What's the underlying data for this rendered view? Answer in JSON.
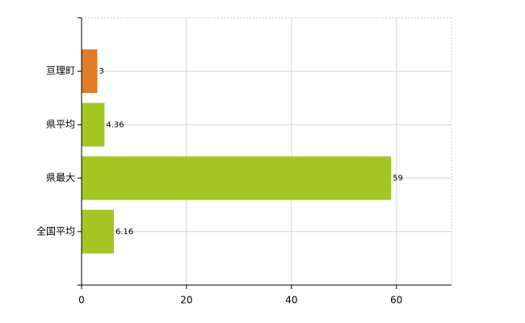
{
  "chart_data": {
    "type": "hbar",
    "categories": [
      "亘理町",
      "県平均",
      "県最大",
      "全国平均"
    ],
    "values": [
      3,
      4.36,
      59,
      6.16
    ],
    "colors": [
      "#e07b28",
      "#a3c623",
      "#a3c623",
      "#a3c623"
    ],
    "xlim": [
      0,
      70.5
    ],
    "xticks": [
      0,
      20,
      40,
      60
    ],
    "grid": true
  }
}
